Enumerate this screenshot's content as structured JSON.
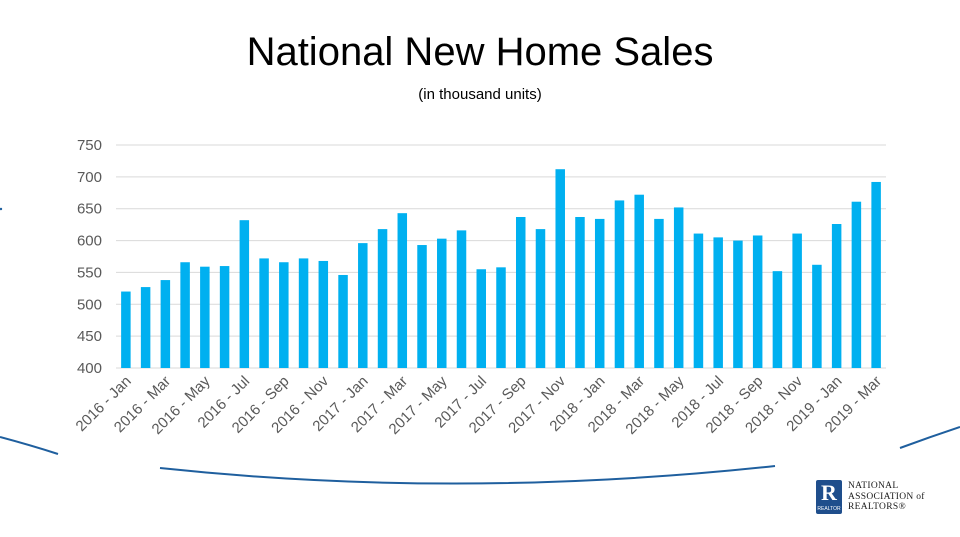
{
  "slide": {
    "title": "National New Home Sales",
    "subtitle": "(in thousand units)"
  },
  "logo": {
    "letter": "R",
    "sub": "REALTOR",
    "lines": [
      "NATIONAL",
      "ASSOCIATION of",
      "REALTORS®"
    ]
  },
  "colors": {
    "bar": "#00B0F0",
    "grid": "#D9D9D9",
    "axis_text": "#595959",
    "arc": "#1F5F9E"
  },
  "chart_data": {
    "type": "bar",
    "title": "National New Home Sales",
    "subtitle": "(in thousand units)",
    "ylim": [
      400,
      750
    ],
    "yticks": [
      400,
      450,
      500,
      550,
      600,
      650,
      700,
      750
    ],
    "grid": true,
    "categories": [
      "2016 - Jan",
      "2016 - Feb",
      "2016 - Mar",
      "2016 - Apr",
      "2016 - May",
      "2016 - Jun",
      "2016 - Jul",
      "2016 - Aug",
      "2016 - Sep",
      "2016 - Oct",
      "2016 - Nov",
      "2016 - Dec",
      "2017 - Jan",
      "2017 - Feb",
      "2017 - Mar",
      "2017 - Apr",
      "2017 - May",
      "2017 - Jun",
      "2017 - Jul",
      "2017 - Aug",
      "2017 - Sep",
      "2017 - Oct",
      "2017 - Nov",
      "2017 - Dec",
      "2018 - Jan",
      "2018 - Feb",
      "2018 - Mar",
      "2018 - Apr",
      "2018 - May",
      "2018 - Jun",
      "2018 - Jul",
      "2018 - Aug",
      "2018 - Sep",
      "2018 - Oct",
      "2018 - Nov",
      "2018 - Dec",
      "2019 - Jan",
      "2019 - Feb",
      "2019 - Mar"
    ],
    "shown_labels": [
      "2016 - Jan",
      "2016 - Mar",
      "2016 - May",
      "2016 - Jul",
      "2016 - Sep",
      "2016 - Nov",
      "2017 - Jan",
      "2017 - Mar",
      "2017 - May",
      "2017 - Jul",
      "2017 - Sep",
      "2017 - Nov",
      "2018 - Jan",
      "2018 - Mar",
      "2018 - May",
      "2018 - Jul",
      "2018 - Sep",
      "2018 - Nov",
      "2019 - Jan",
      "2019 - Mar"
    ],
    "values": [
      520,
      527,
      538,
      566,
      559,
      560,
      632,
      572,
      566,
      572,
      568,
      546,
      596,
      618,
      643,
      593,
      603,
      616,
      555,
      558,
      637,
      618,
      712,
      637,
      634,
      663,
      672,
      634,
      652,
      611,
      605,
      600,
      608,
      552,
      611,
      562,
      626,
      661,
      692
    ]
  }
}
